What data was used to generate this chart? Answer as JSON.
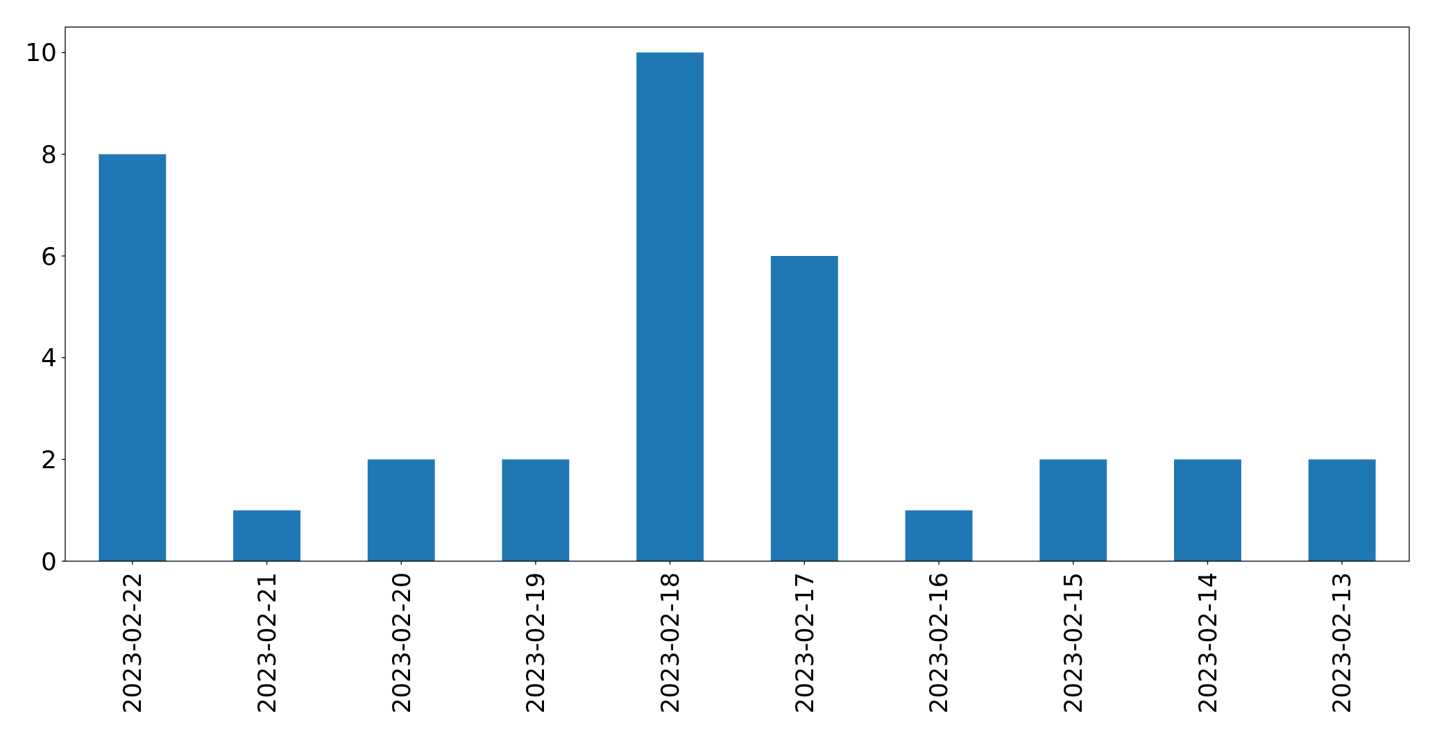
{
  "chart_data": {
    "type": "bar",
    "categories": [
      "2023-02-22",
      "2023-02-21",
      "2023-02-20",
      "2023-02-19",
      "2023-02-18",
      "2023-02-17",
      "2023-02-16",
      "2023-02-15",
      "2023-02-14",
      "2023-02-13"
    ],
    "values": [
      8,
      1,
      2,
      2,
      10,
      6,
      1,
      2,
      2,
      2
    ],
    "color": "#1f77b4",
    "ylim": [
      0,
      10.5
    ],
    "yticks": [
      0,
      2,
      4,
      6,
      8,
      10
    ],
    "grid": false
  }
}
